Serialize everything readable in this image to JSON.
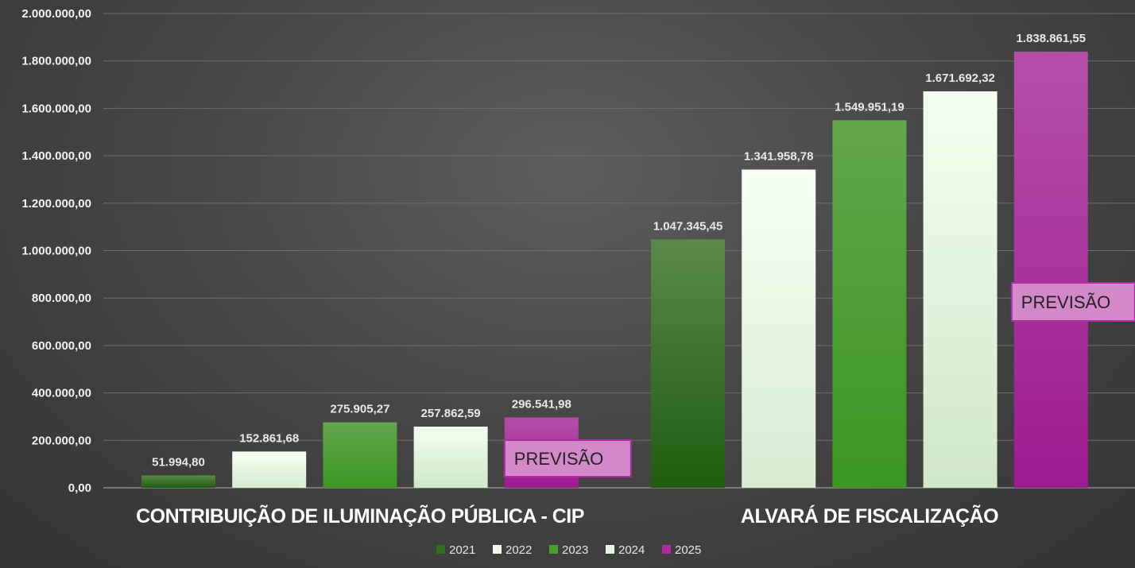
{
  "chart_data": {
    "type": "bar",
    "categories": [
      "CONTRIBUIÇÃO DE ILUMINAÇÃO PÚBLICA - CIP",
      "ALVARÁ DE FISCALIZAÇÃO"
    ],
    "series": [
      {
        "name": "2021",
        "values": [
          51994.8,
          1047345.45
        ],
        "labels": [
          "51.994,80",
          "1.047.345,45"
        ],
        "color": "#2b6a1a"
      },
      {
        "name": "2022",
        "values": [
          152861.68,
          1341958.78
        ],
        "labels": [
          "152.861,68",
          "1.341.958,78"
        ],
        "color": "#eef8ea"
      },
      {
        "name": "2023",
        "values": [
          275905.27,
          1549951.19
        ],
        "labels": [
          "275.905,27",
          "1.549.951,19"
        ],
        "color": "#45a030"
      },
      {
        "name": "2024",
        "values": [
          257862.59,
          1671692.32
        ],
        "labels": [
          "257.862,59",
          "1.671.692,32"
        ],
        "color": "#eaf6e4"
      },
      {
        "name": "2025",
        "values": [
          296541.98,
          1838861.55
        ],
        "labels": [
          "296.541,98",
          "1.838.861,55"
        ],
        "color": "#b02aa4"
      }
    ],
    "yticks": [
      {
        "value": 0,
        "label": "0,00"
      },
      {
        "value": 200000,
        "label": "200.000,00"
      },
      {
        "value": 400000,
        "label": "400.000,00"
      },
      {
        "value": 600000,
        "label": "600.000,00"
      },
      {
        "value": 800000,
        "label": "800.000,00"
      },
      {
        "value": 1000000,
        "label": "1.000.000,00"
      },
      {
        "value": 1200000,
        "label": "1.200.000,00"
      },
      {
        "value": 1400000,
        "label": "1.400.000,00"
      },
      {
        "value": 1600000,
        "label": "1.600.000,00"
      },
      {
        "value": 1800000,
        "label": "1.800.000,00"
      },
      {
        "value": 2000000,
        "label": "2.000.000,00"
      }
    ],
    "ylim": [
      0,
      2000000
    ],
    "grid": true,
    "legend_position": "bottom-center",
    "annotations": [
      {
        "text": "PREVISÃO",
        "category_index": 0,
        "series_index": 4
      },
      {
        "text": "PREVISÃO",
        "category_index": 1,
        "series_index": 4
      }
    ],
    "title": "",
    "xlabel": "",
    "ylabel": ""
  }
}
